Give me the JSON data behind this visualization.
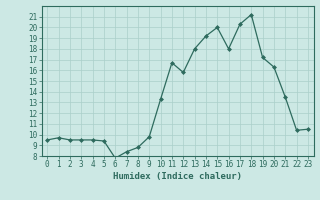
{
  "x": [
    0,
    1,
    2,
    3,
    4,
    5,
    6,
    7,
    8,
    9,
    10,
    11,
    12,
    13,
    14,
    15,
    16,
    17,
    18,
    19,
    20,
    21,
    22,
    23
  ],
  "y": [
    9.5,
    9.7,
    9.5,
    9.5,
    9.5,
    9.4,
    7.8,
    8.4,
    8.8,
    9.8,
    13.3,
    16.7,
    15.8,
    18.0,
    19.2,
    20.0,
    18.0,
    20.3,
    21.2,
    17.2,
    16.3,
    13.5,
    10.4,
    10.5
  ],
  "xlabel": "Humidex (Indice chaleur)",
  "ylim": [
    8,
    22
  ],
  "xlim": [
    -0.5,
    23.5
  ],
  "yticks": [
    8,
    9,
    10,
    11,
    12,
    13,
    14,
    15,
    16,
    17,
    18,
    19,
    20,
    21
  ],
  "xticks": [
    0,
    1,
    2,
    3,
    4,
    5,
    6,
    7,
    8,
    9,
    10,
    11,
    12,
    13,
    14,
    15,
    16,
    17,
    18,
    19,
    20,
    21,
    22,
    23
  ],
  "line_color": "#2e6b5e",
  "marker_color": "#2e6b5e",
  "bg_color": "#cce8e4",
  "grid_color": "#aacfca",
  "axis_color": "#2e6b5e",
  "label_color": "#2e6b5e",
  "xlabel_fontsize": 6.5,
  "tick_fontsize": 5.5
}
